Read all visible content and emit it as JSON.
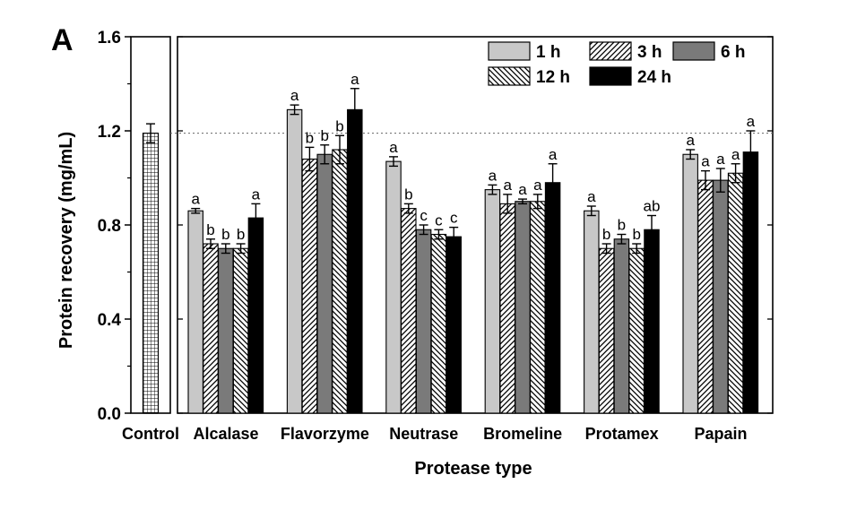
{
  "chart_data": {
    "type": "bar",
    "panel_label": "A",
    "title": "",
    "xlabel": "Protease type",
    "ylabel": "Protein recovery (mg/mL)",
    "ylim": [
      0.0,
      1.6
    ],
    "yticks": [
      "0.0",
      "0.4",
      "0.8",
      "1.2",
      "1.6"
    ],
    "reference_line": 1.19,
    "control": {
      "label": "Control",
      "value": 1.19,
      "error": 0.04,
      "color": "#ffffff",
      "pattern": "grid"
    },
    "categories": [
      "Alcalase",
      "Flavorzyme",
      "Neutrase",
      "Bromeline",
      "Protamex",
      "Papain"
    ],
    "series": [
      {
        "name": "1 h",
        "color": "#c8c8c8",
        "pattern": "solid",
        "values": [
          0.86,
          1.29,
          1.07,
          0.95,
          0.86,
          1.1
        ],
        "errors": [
          0.01,
          0.02,
          0.02,
          0.02,
          0.02,
          0.02
        ],
        "letters": [
          "a",
          "a",
          "a",
          "a",
          "a",
          "a"
        ]
      },
      {
        "name": "3 h",
        "color": "#ffffff",
        "pattern": "diagonal",
        "values": [
          0.72,
          1.08,
          0.87,
          0.89,
          0.7,
          0.99
        ],
        "errors": [
          0.02,
          0.05,
          0.02,
          0.04,
          0.02,
          0.04
        ],
        "letters": [
          "b",
          "b",
          "b",
          "a",
          "b",
          "a"
        ]
      },
      {
        "name": "6 h",
        "color": "#7a7a7a",
        "pattern": "solid",
        "values": [
          0.7,
          1.1,
          0.78,
          0.9,
          0.74,
          0.99
        ],
        "errors": [
          0.02,
          0.04,
          0.02,
          0.01,
          0.02,
          0.05
        ],
        "letters": [
          "b",
          "b",
          "c",
          "a",
          "b",
          "a"
        ]
      },
      {
        "name": "12 h",
        "color": "#ffffff",
        "pattern": "backdiagonal",
        "values": [
          0.7,
          1.12,
          0.76,
          0.9,
          0.7,
          1.02
        ],
        "errors": [
          0.02,
          0.06,
          0.02,
          0.03,
          0.02,
          0.04
        ],
        "letters": [
          "b",
          "b",
          "c",
          "a",
          "b",
          "a"
        ]
      },
      {
        "name": "24 h",
        "color": "#000000",
        "pattern": "solid",
        "values": [
          0.83,
          1.29,
          0.75,
          0.98,
          0.78,
          1.11
        ],
        "errors": [
          0.06,
          0.09,
          0.04,
          0.08,
          0.06,
          0.09
        ],
        "letters": [
          "a",
          "a",
          "c",
          "a",
          "ab",
          "a"
        ]
      }
    ],
    "legend_position": "top-right",
    "grid": false
  }
}
